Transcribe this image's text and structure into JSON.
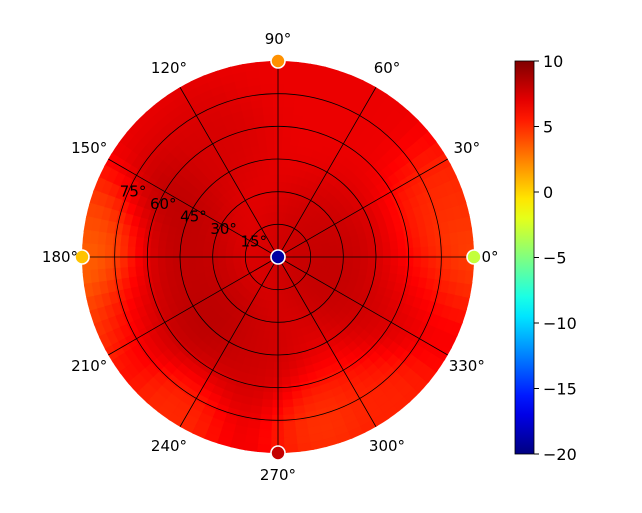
{
  "chart_data": {
    "type": "heatmap",
    "projection": "polar",
    "title": "",
    "angle_ticks": [
      {
        "deg": 0,
        "label": "0°"
      },
      {
        "deg": 30,
        "label": "30°"
      },
      {
        "deg": 60,
        "label": "60°"
      },
      {
        "deg": 90,
        "label": "90°"
      },
      {
        "deg": 120,
        "label": "120°"
      },
      {
        "deg": 150,
        "label": "150°"
      },
      {
        "deg": 180,
        "label": "180°"
      },
      {
        "deg": 210,
        "label": "210°"
      },
      {
        "deg": 240,
        "label": "240°"
      },
      {
        "deg": 270,
        "label": "270°"
      },
      {
        "deg": 300,
        "label": "300°"
      },
      {
        "deg": 330,
        "label": "330°"
      }
    ],
    "radial_ticks": [
      {
        "value": 15,
        "label": "15°"
      },
      {
        "value": 30,
        "label": "30°"
      },
      {
        "value": 45,
        "label": "45°"
      },
      {
        "value": 60,
        "label": "60°"
      },
      {
        "value": 75,
        "label": "75°"
      }
    ],
    "radial_range": [
      0,
      90
    ],
    "radial_label_angle_deg": 157.5,
    "grid": true,
    "colormap": "jet",
    "colorbar": {
      "min": -20,
      "max": 10,
      "ticks": [
        10,
        5,
        0,
        -5,
        -10,
        -15,
        -20
      ],
      "tick_labels": [
        "10",
        "5",
        "0",
        "−5",
        "−10",
        "−15",
        "−20"
      ]
    },
    "field": {
      "description_values": "approximate directivity (data units) at angle/radius",
      "baseline": 6.8,
      "blobs": [
        {
          "angle": 155,
          "r": 55,
          "value": 8.6
        },
        {
          "angle": 185,
          "r": 45,
          "value": 8.4
        },
        {
          "angle": 225,
          "r": 45,
          "value": 8.7
        },
        {
          "angle": 200,
          "r": 72,
          "value": 8.2
        },
        {
          "angle": 345,
          "r": 25,
          "value": 8.4
        },
        {
          "angle": 340,
          "r": 55,
          "value": 8.0
        },
        {
          "angle": 30,
          "r": 20,
          "value": 7.9
        },
        {
          "angle": 120,
          "r": 60,
          "value": 7.6
        },
        {
          "angle": 260,
          "r": 50,
          "value": 7.9
        },
        {
          "angle": 185,
          "r": 88,
          "value": 1.8
        },
        {
          "angle": 200,
          "r": 88,
          "value": 3.0
        },
        {
          "angle": 170,
          "r": 86,
          "value": 3.5
        },
        {
          "angle": 235,
          "r": 87,
          "value": 4.5
        },
        {
          "angle": 0,
          "r": 87,
          "value": 3.5
        },
        {
          "angle": 20,
          "r": 84,
          "value": 4.5
        },
        {
          "angle": 310,
          "r": 85,
          "value": 4.8
        },
        {
          "angle": 285,
          "r": 80,
          "value": 4.2
        },
        {
          "angle": 350,
          "r": 70,
          "value": 5.5
        }
      ]
    },
    "markers": [
      {
        "angle": 0,
        "r": 0,
        "value": -19
      },
      {
        "angle": 90,
        "r": 90,
        "value": 2
      },
      {
        "angle": 0,
        "r": 90,
        "value": -3
      },
      {
        "angle": 180,
        "r": 90,
        "value": 0.5
      },
      {
        "angle": 270,
        "r": 90,
        "value": 8
      }
    ]
  }
}
